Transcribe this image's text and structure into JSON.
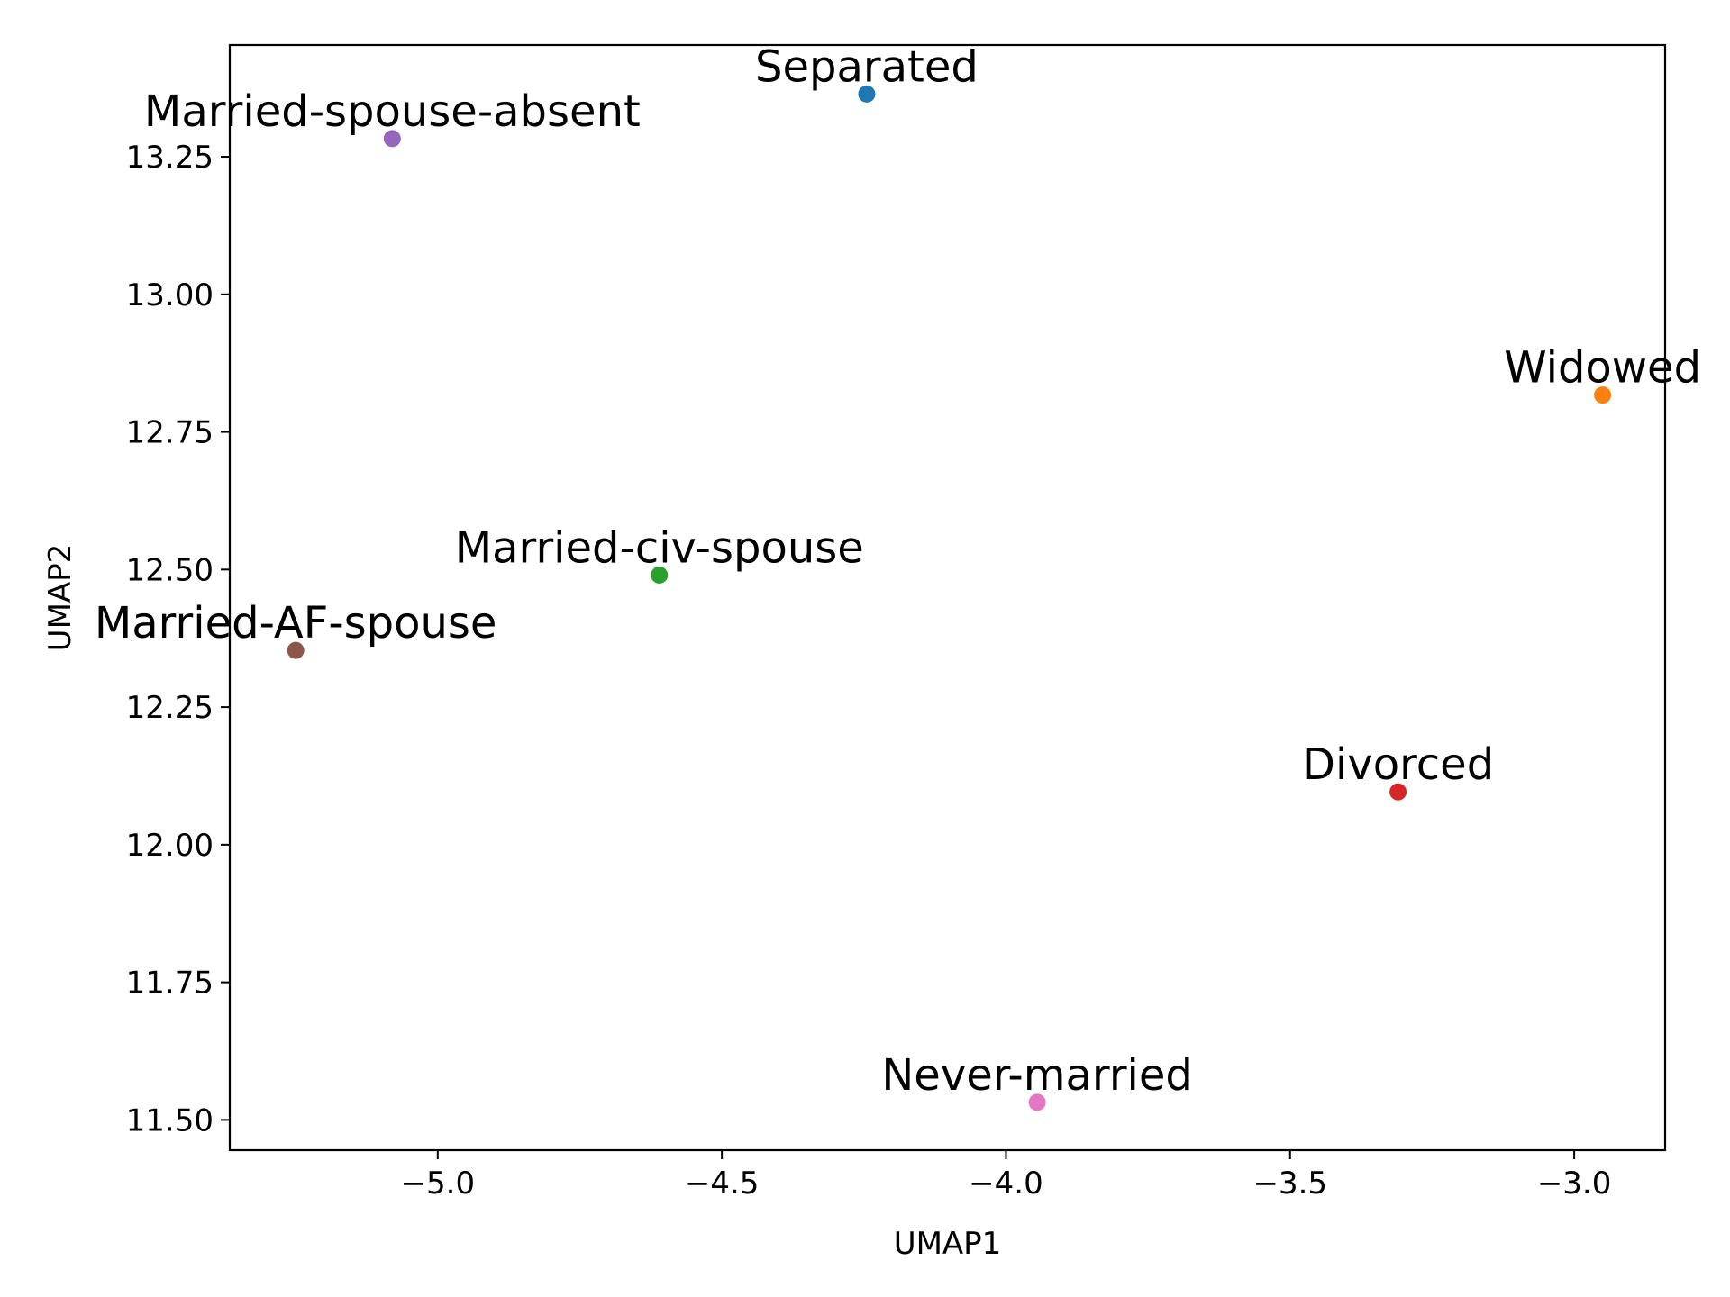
{
  "chart_data": {
    "type": "scatter",
    "xlabel": "UMAP1",
    "ylabel": "UMAP2",
    "xlim": [
      -5.366,
      -2.84
    ],
    "ylim": [
      11.445,
      13.453
    ],
    "xticks": [
      -5.0,
      -4.5,
      -4.0,
      -3.5,
      -3.0
    ],
    "xtick_labels": [
      "−5.0",
      "−4.5",
      "−4.0",
      "−3.5",
      "−3.0"
    ],
    "yticks": [
      11.5,
      11.75,
      12.0,
      12.25,
      12.5,
      12.75,
      13.0,
      13.25
    ],
    "ytick_labels": [
      "11.50",
      "11.75",
      "12.00",
      "12.25",
      "12.50",
      "12.75",
      "13.00",
      "13.25"
    ],
    "grid": false,
    "points": [
      {
        "label": "Separated",
        "x": -4.245,
        "y": 13.364,
        "color": "#1f77b4"
      },
      {
        "label": "Widowed",
        "x": -2.95,
        "y": 12.817,
        "color": "#ff7f0e"
      },
      {
        "label": "Married-civ-spouse",
        "x": -4.61,
        "y": 12.49,
        "color": "#2ca02c"
      },
      {
        "label": "Divorced",
        "x": -3.31,
        "y": 12.096,
        "color": "#d62728"
      },
      {
        "label": "Married-spouse-absent",
        "x": -5.08,
        "y": 13.283,
        "color": "#9467bd"
      },
      {
        "label": "Married-AF-spouse",
        "x": -5.25,
        "y": 12.353,
        "color": "#8c564b"
      },
      {
        "label": "Never-married",
        "x": -3.945,
        "y": 11.532,
        "color": "#e377c2"
      }
    ]
  }
}
